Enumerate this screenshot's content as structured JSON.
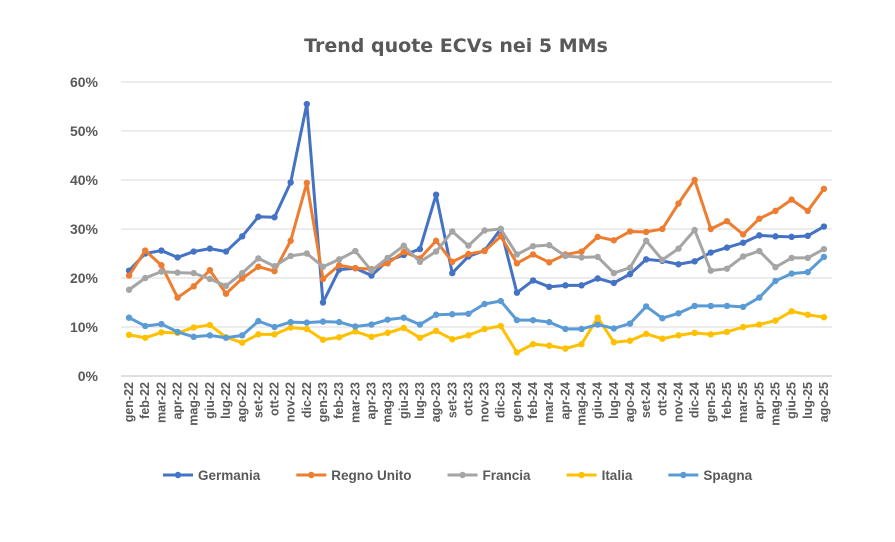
{
  "chart_data": {
    "type": "line",
    "title": "Trend quote ECVs nei 5 MMs",
    "xlabel": "",
    "ylabel": "",
    "ylim": [
      0,
      60
    ],
    "yticks": [
      "0%",
      "10%",
      "20%",
      "30%",
      "40%",
      "50%",
      "60%"
    ],
    "grid": true,
    "legend_position": "bottom",
    "categories": [
      "gen-22",
      "feb-22",
      "mar-22",
      "apr-22",
      "mag-22",
      "giu-22",
      "lug-22",
      "ago-22",
      "set-22",
      "ott-22",
      "nov-22",
      "dic-22",
      "gen-23",
      "feb-23",
      "mar-23",
      "apr-23",
      "mag-23",
      "giu-23",
      "lug-23",
      "ago-23",
      "set-23",
      "ott-23",
      "nov-23",
      "dic-23",
      "gen-24",
      "feb-24",
      "mar-24",
      "apr-24",
      "mag-24",
      "giu-24",
      "lug-24",
      "ago-24",
      "set-24",
      "ott-24",
      "nov-24",
      "dic-24",
      "gen-25",
      "feb-25",
      "mar-25",
      "apr-25",
      "mag-25",
      "giu-25",
      "lug-25",
      "ago-25"
    ],
    "series": [
      {
        "name": "Germania",
        "color": "#4472c4",
        "values": [
          21.5,
          25.0,
          25.6,
          24.2,
          25.4,
          26.0,
          25.4,
          28.5,
          32.5,
          32.4,
          39.5,
          55.5,
          15.0,
          21.7,
          22.0,
          20.5,
          23.5,
          24.7,
          25.9,
          37.0,
          21.0,
          24.4,
          25.6,
          30.0,
          17.0,
          19.5,
          18.2,
          18.5,
          18.5,
          19.9,
          19.0,
          20.8,
          23.8,
          23.5,
          22.8,
          23.4,
          25.2,
          26.2,
          27.2,
          28.7,
          28.5,
          28.4,
          28.6,
          30.5
        ]
      },
      {
        "name": "Regno Unito",
        "color": "#ed7d31",
        "values": [
          20.5,
          25.6,
          22.6,
          16.0,
          18.3,
          21.6,
          16.8,
          19.9,
          22.3,
          21.4,
          27.6,
          39.4,
          19.8,
          22.6,
          22.0,
          21.8,
          23.0,
          25.3,
          24.0,
          27.6,
          23.3,
          24.9,
          25.5,
          28.5,
          23.0,
          24.8,
          23.2,
          24.8,
          25.4,
          28.4,
          27.7,
          29.5,
          29.4,
          30.0,
          35.2,
          40.0,
          30.0,
          31.6,
          28.9,
          32.1,
          33.7,
          36.0,
          33.7,
          38.2
        ]
      },
      {
        "name": "Francia",
        "color": "#a5a5a5",
        "values": [
          17.6,
          20.0,
          21.3,
          21.1,
          21.0,
          19.8,
          18.4,
          21.0,
          24.0,
          22.4,
          24.5,
          25.0,
          22.3,
          23.8,
          25.5,
          21.5,
          24.1,
          26.6,
          23.3,
          25.4,
          29.5,
          26.6,
          29.7,
          30.0,
          24.8,
          26.5,
          26.7,
          24.5,
          24.2,
          24.3,
          21.0,
          22.1,
          27.6,
          23.7,
          26.0,
          29.8,
          21.5,
          21.9,
          24.4,
          25.5,
          22.2,
          24.1,
          24.1,
          25.9
        ]
      },
      {
        "name": "Italia",
        "color": "#ffc000",
        "values": [
          8.4,
          7.8,
          8.9,
          8.8,
          9.9,
          10.4,
          7.9,
          6.8,
          8.5,
          8.5,
          9.9,
          9.6,
          7.4,
          7.9,
          9.1,
          8.0,
          8.8,
          9.8,
          7.8,
          9.2,
          7.5,
          8.3,
          9.6,
          10.2,
          4.8,
          6.5,
          6.2,
          5.6,
          6.5,
          11.9,
          6.9,
          7.2,
          8.6,
          7.6,
          8.3,
          8.8,
          8.5,
          9.0,
          10.0,
          10.5,
          11.3,
          13.2,
          12.5,
          12.0
        ]
      },
      {
        "name": "Spagna",
        "color": "#5b9bd5",
        "values": [
          11.9,
          10.2,
          10.6,
          9.0,
          8.0,
          8.3,
          7.8,
          8.3,
          11.2,
          10.0,
          11.0,
          10.9,
          11.1,
          11.0,
          10.1,
          10.5,
          11.5,
          11.9,
          10.5,
          12.5,
          12.6,
          12.7,
          14.7,
          15.3,
          11.4,
          11.4,
          11.0,
          9.6,
          9.6,
          10.5,
          9.7,
          10.7,
          14.2,
          11.8,
          12.8,
          14.3,
          14.3,
          14.3,
          14.1,
          16.0,
          19.4,
          20.9,
          21.2,
          24.3
        ]
      }
    ]
  }
}
